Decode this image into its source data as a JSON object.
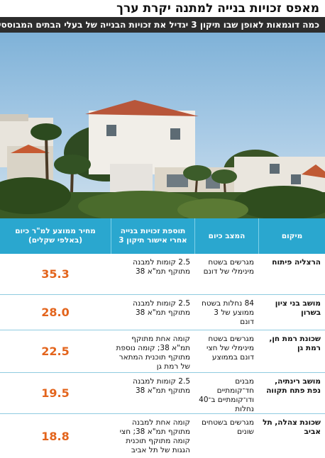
{
  "headline": "מאפס זכויות בנייה למתנה יקרת ערך",
  "subhead": "כמה דוגמאות לאופן שבו תיקון 3 יגדיל את זכויות הבנייה של בעלי הבתים המבוססים",
  "table": {
    "headers": {
      "location": "מיקום",
      "current": "המצב כיום",
      "addition": "תוספת זכויות בנייה אחרי אישור תיקון 3",
      "price": "מחיר ממוצע למ\"ר כיום (באלפי שקלים)"
    },
    "rows": [
      {
        "location": "הרצליה פיתוח",
        "current": "מגרשים בשטח מינימלי של דונם",
        "addition": "2.5 קומות למבנה מתוקף תמ\"א 38",
        "price": "35.3"
      },
      {
        "location": "מושב בני ציון בשרון",
        "current": "84 נחלות בשטח ממוצע של 3 דונם",
        "addition": "2.5 קומות למבנה מתוקף תמ\"א 38",
        "price": "28.0"
      },
      {
        "location": "שכונת רמת חן, רמת גן",
        "current": "מגרשים בשטח מינימלי של חצי דונם בממוצע",
        "addition": "קומה אחת מתוקף תמ\"א 38; קומה נוספת מתוקף תוכנית המתאר של רמת גן",
        "price": "22.5"
      },
      {
        "location": "מושב רינתיה, נפת פתח תקווה",
        "current": "מבנים חד־קומתיים ודו־קומתיים ב־40 נחלות",
        "addition": "2.5 קומות למבנה מתוקף תמ\"א 38",
        "price": "19.5"
      },
      {
        "location": "שכונת צהלה, תל אביב",
        "current": "מגרשים בשטחים שונים",
        "addition": "קומה אחת למבנה מתוקף תמ\"א 38; חצי קומה מתוקף תוכנית הגגות של תל אביב",
        "price": "18.8"
      }
    ]
  },
  "colors": {
    "header_bg": "#2aa7cf",
    "price": "#e3641c",
    "subhead_bg": "#2d2d2d"
  }
}
